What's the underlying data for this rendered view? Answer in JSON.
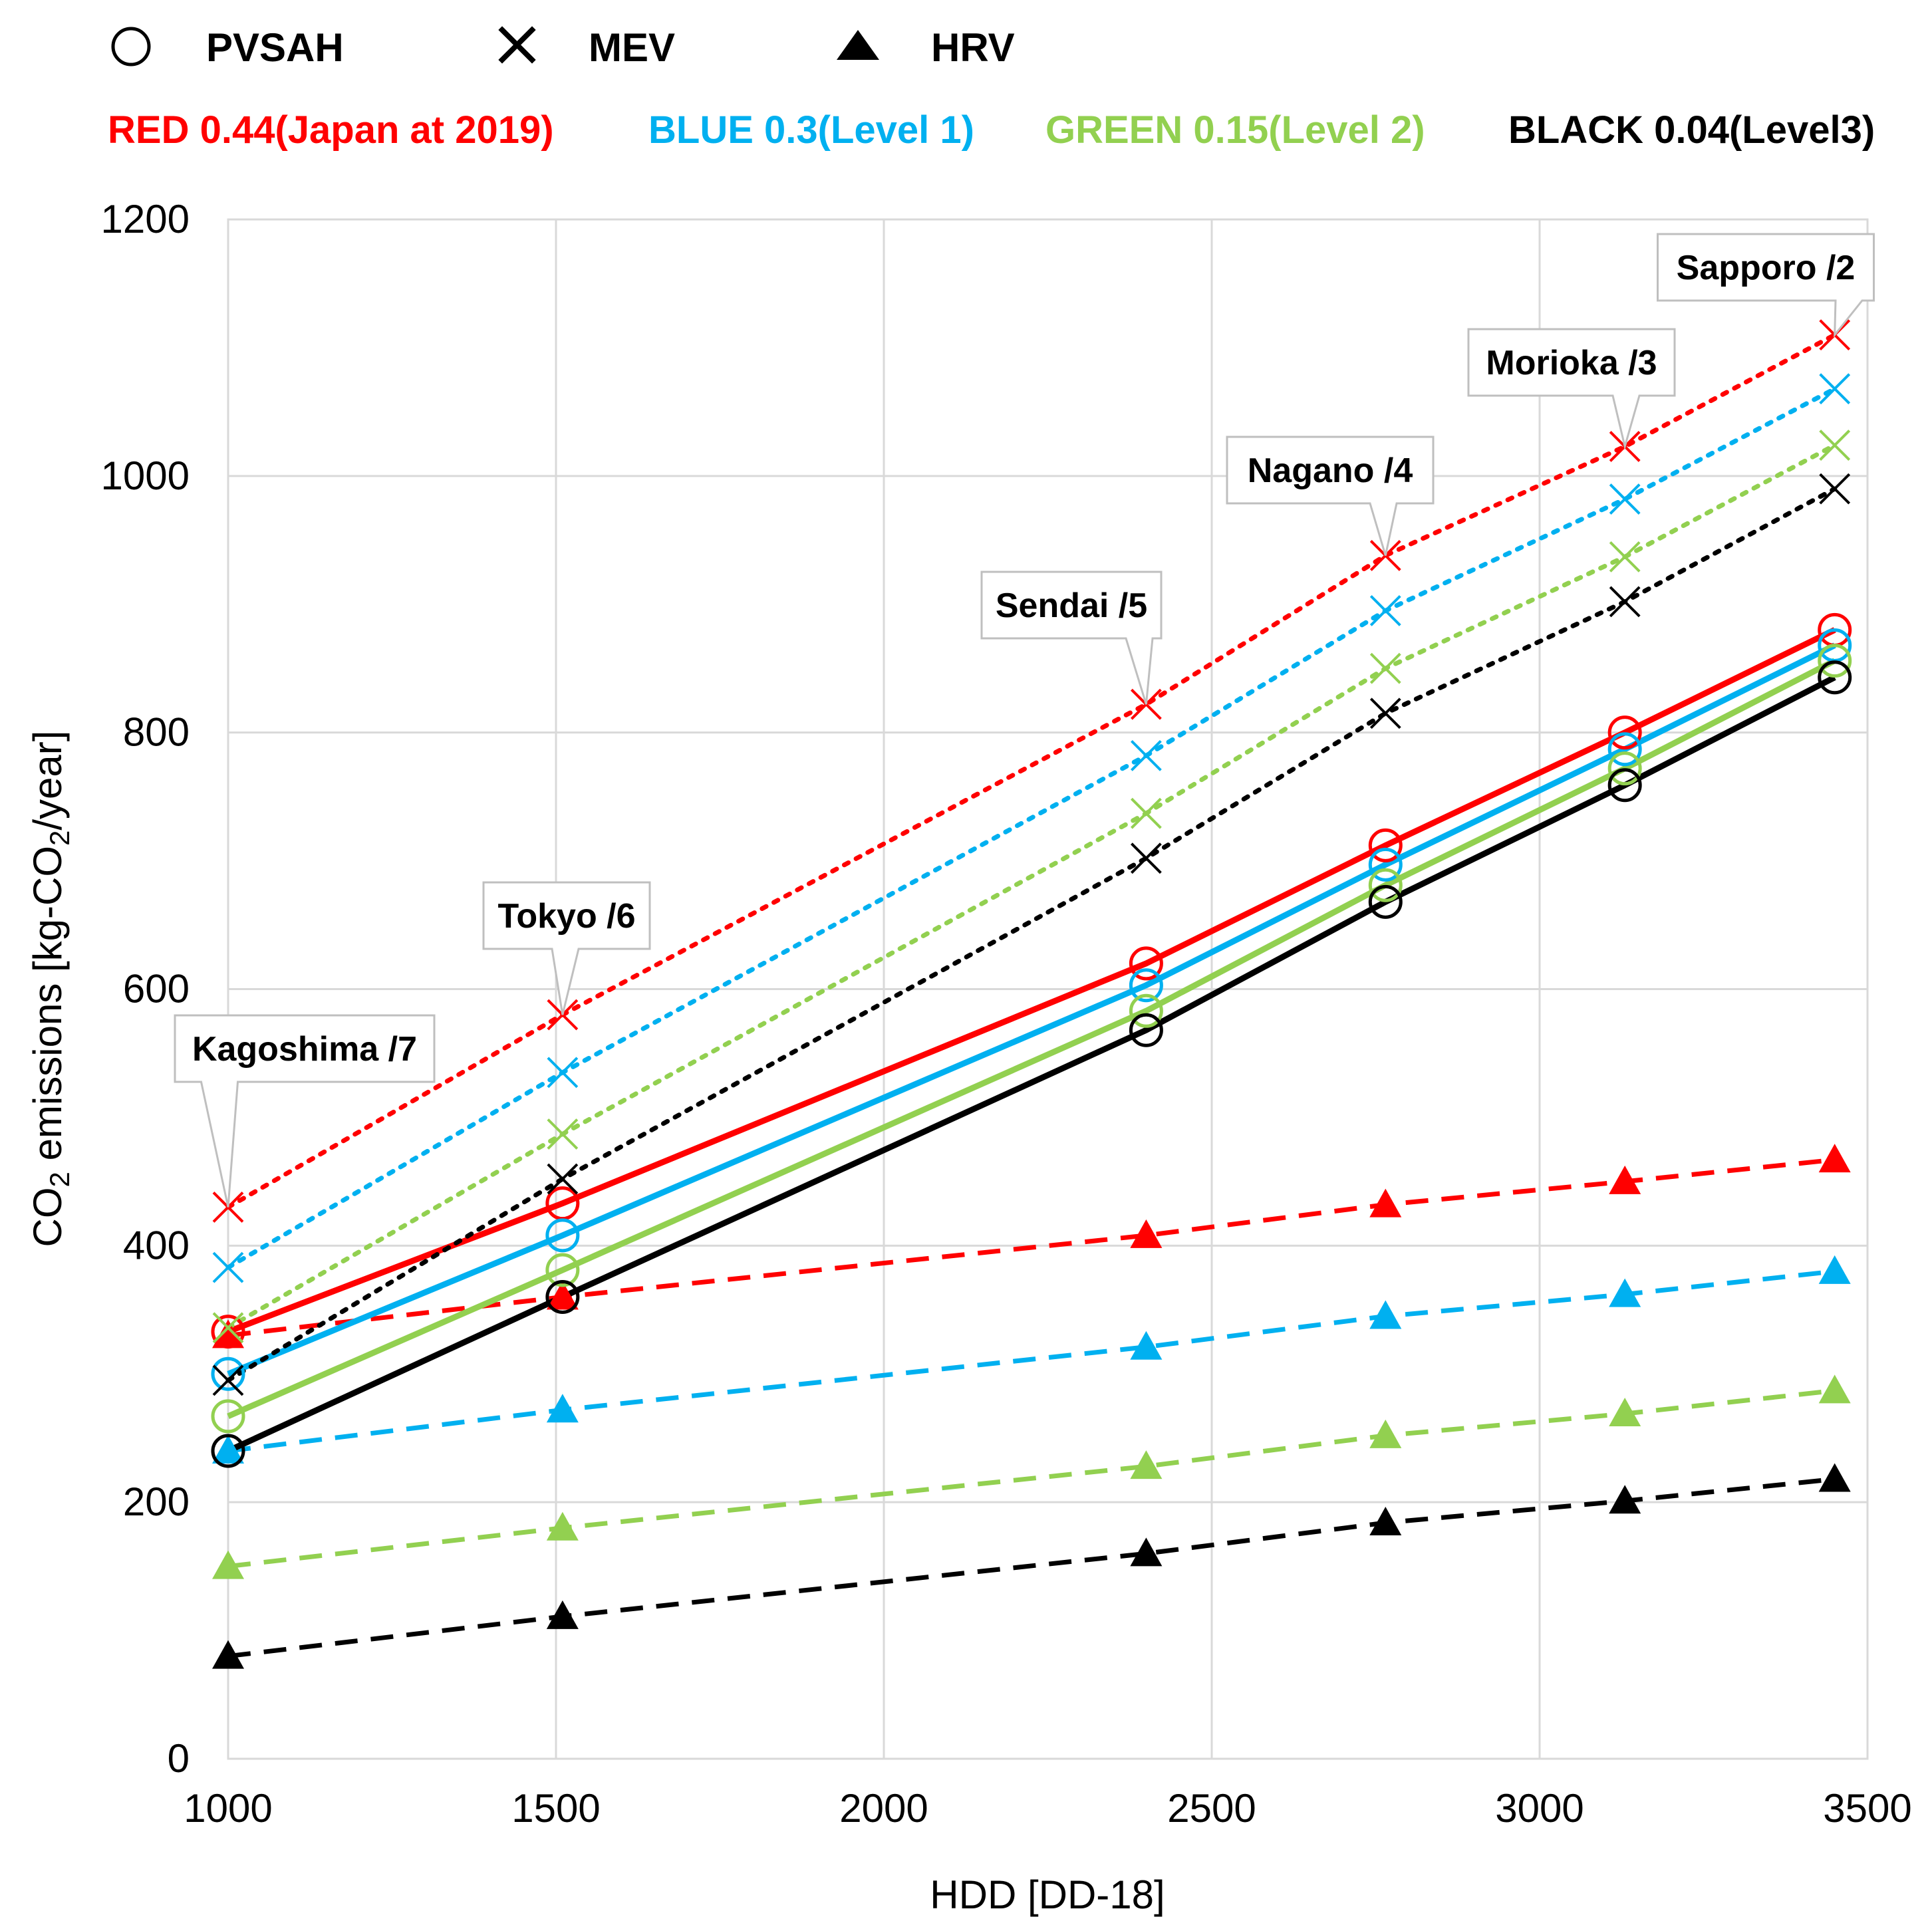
{
  "chart_data": {
    "type": "line",
    "xlabel": "HDD [DD-18]",
    "ylabel_parts": [
      "CO",
      "2",
      " emissions [kg-CO",
      "2",
      "/year]"
    ],
    "xlim": [
      1000,
      3500
    ],
    "ylim": [
      0,
      1200
    ],
    "xticks": [
      "1000",
      "1500",
      "2000",
      "2500",
      "3000",
      "3500"
    ],
    "yticks": [
      "0",
      "200",
      "400",
      "600",
      "800",
      "1000",
      "1200"
    ],
    "grid": true,
    "x": [
      1000,
      1510,
      2400,
      2765,
      3130,
      3450
    ],
    "cities": [
      {
        "label": "Kagoshima /7",
        "x": 1000,
        "y": 430
      },
      {
        "label": "Tokyo /6",
        "x": 1510,
        "y": 580
      },
      {
        "label": "Sendai /5",
        "x": 2400,
        "y": 822
      },
      {
        "label": "Nagano /4",
        "x": 2765,
        "y": 938
      },
      {
        "label": "Morioka /3",
        "x": 3130,
        "y": 1023
      },
      {
        "label": "Sapporo /2",
        "x": 3450,
        "y": 1110
      }
    ],
    "systems_legend": [
      {
        "marker": "circle",
        "label": "PVSAH"
      },
      {
        "marker": "cross",
        "label": "MEV"
      },
      {
        "marker": "triangle",
        "label": "HRV"
      }
    ],
    "emission_factors": [
      {
        "label": "RED 0.44(Japan at 2019)",
        "color": "#ff0000"
      },
      {
        "label": "BLUE 0.3(Level 1)",
        "color": "#00b0f0"
      },
      {
        "label": "GREEN 0.15(Level 2)",
        "color": "#92d050"
      },
      {
        "label": "BLACK 0.04(Level3)",
        "color": "#000000"
      }
    ],
    "series": [
      {
        "name": "MEV RED 0.44",
        "system": "MEV",
        "color": "#ff0000",
        "values": [
          430,
          580,
          822,
          938,
          1023,
          1110
        ]
      },
      {
        "name": "MEV BLUE 0.3",
        "system": "MEV",
        "color": "#00b0f0",
        "values": [
          383,
          535,
          782,
          895,
          982,
          1068
        ]
      },
      {
        "name": "MEV GREEN 0.15",
        "system": "MEV",
        "color": "#92d050",
        "values": [
          336,
          487,
          737,
          850,
          937,
          1024
        ]
      },
      {
        "name": "MEV BLACK 0.04",
        "system": "MEV",
        "color": "#000000",
        "values": [
          295,
          452,
          702,
          815,
          902,
          990
        ]
      },
      {
        "name": "PVSAH RED 0.44",
        "system": "PVSAH",
        "color": "#ff0000",
        "values": [
          333,
          433,
          620,
          712,
          800,
          880
        ]
      },
      {
        "name": "PVSAH BLUE 0.3",
        "system": "PVSAH",
        "color": "#00b0f0",
        "values": [
          300,
          408,
          603,
          697,
          787,
          868
        ]
      },
      {
        "name": "PVSAH GREEN 0.15",
        "system": "PVSAH",
        "color": "#92d050",
        "values": [
          267,
          381,
          583,
          681,
          772,
          856
        ]
      },
      {
        "name": "PVSAH BLACK 0.04",
        "system": "PVSAH",
        "color": "#000000",
        "values": [
          240,
          360,
          568,
          668,
          759,
          843
        ]
      },
      {
        "name": "HRV RED 0.44",
        "system": "HRV",
        "color": "#ff0000",
        "values": [
          330,
          360,
          408,
          432,
          450,
          467
        ]
      },
      {
        "name": "HRV BLUE 0.3",
        "system": "HRV",
        "color": "#00b0f0",
        "values": [
          240,
          272,
          321,
          345,
          362,
          380
        ]
      },
      {
        "name": "HRV GREEN 0.15",
        "system": "HRV",
        "color": "#92d050",
        "values": [
          150,
          180,
          228,
          252,
          269,
          287
        ]
      },
      {
        "name": "HRV BLACK 0.04",
        "system": "HRV",
        "color": "#000000",
        "values": [
          80,
          111,
          160,
          184,
          201,
          218
        ]
      }
    ]
  }
}
